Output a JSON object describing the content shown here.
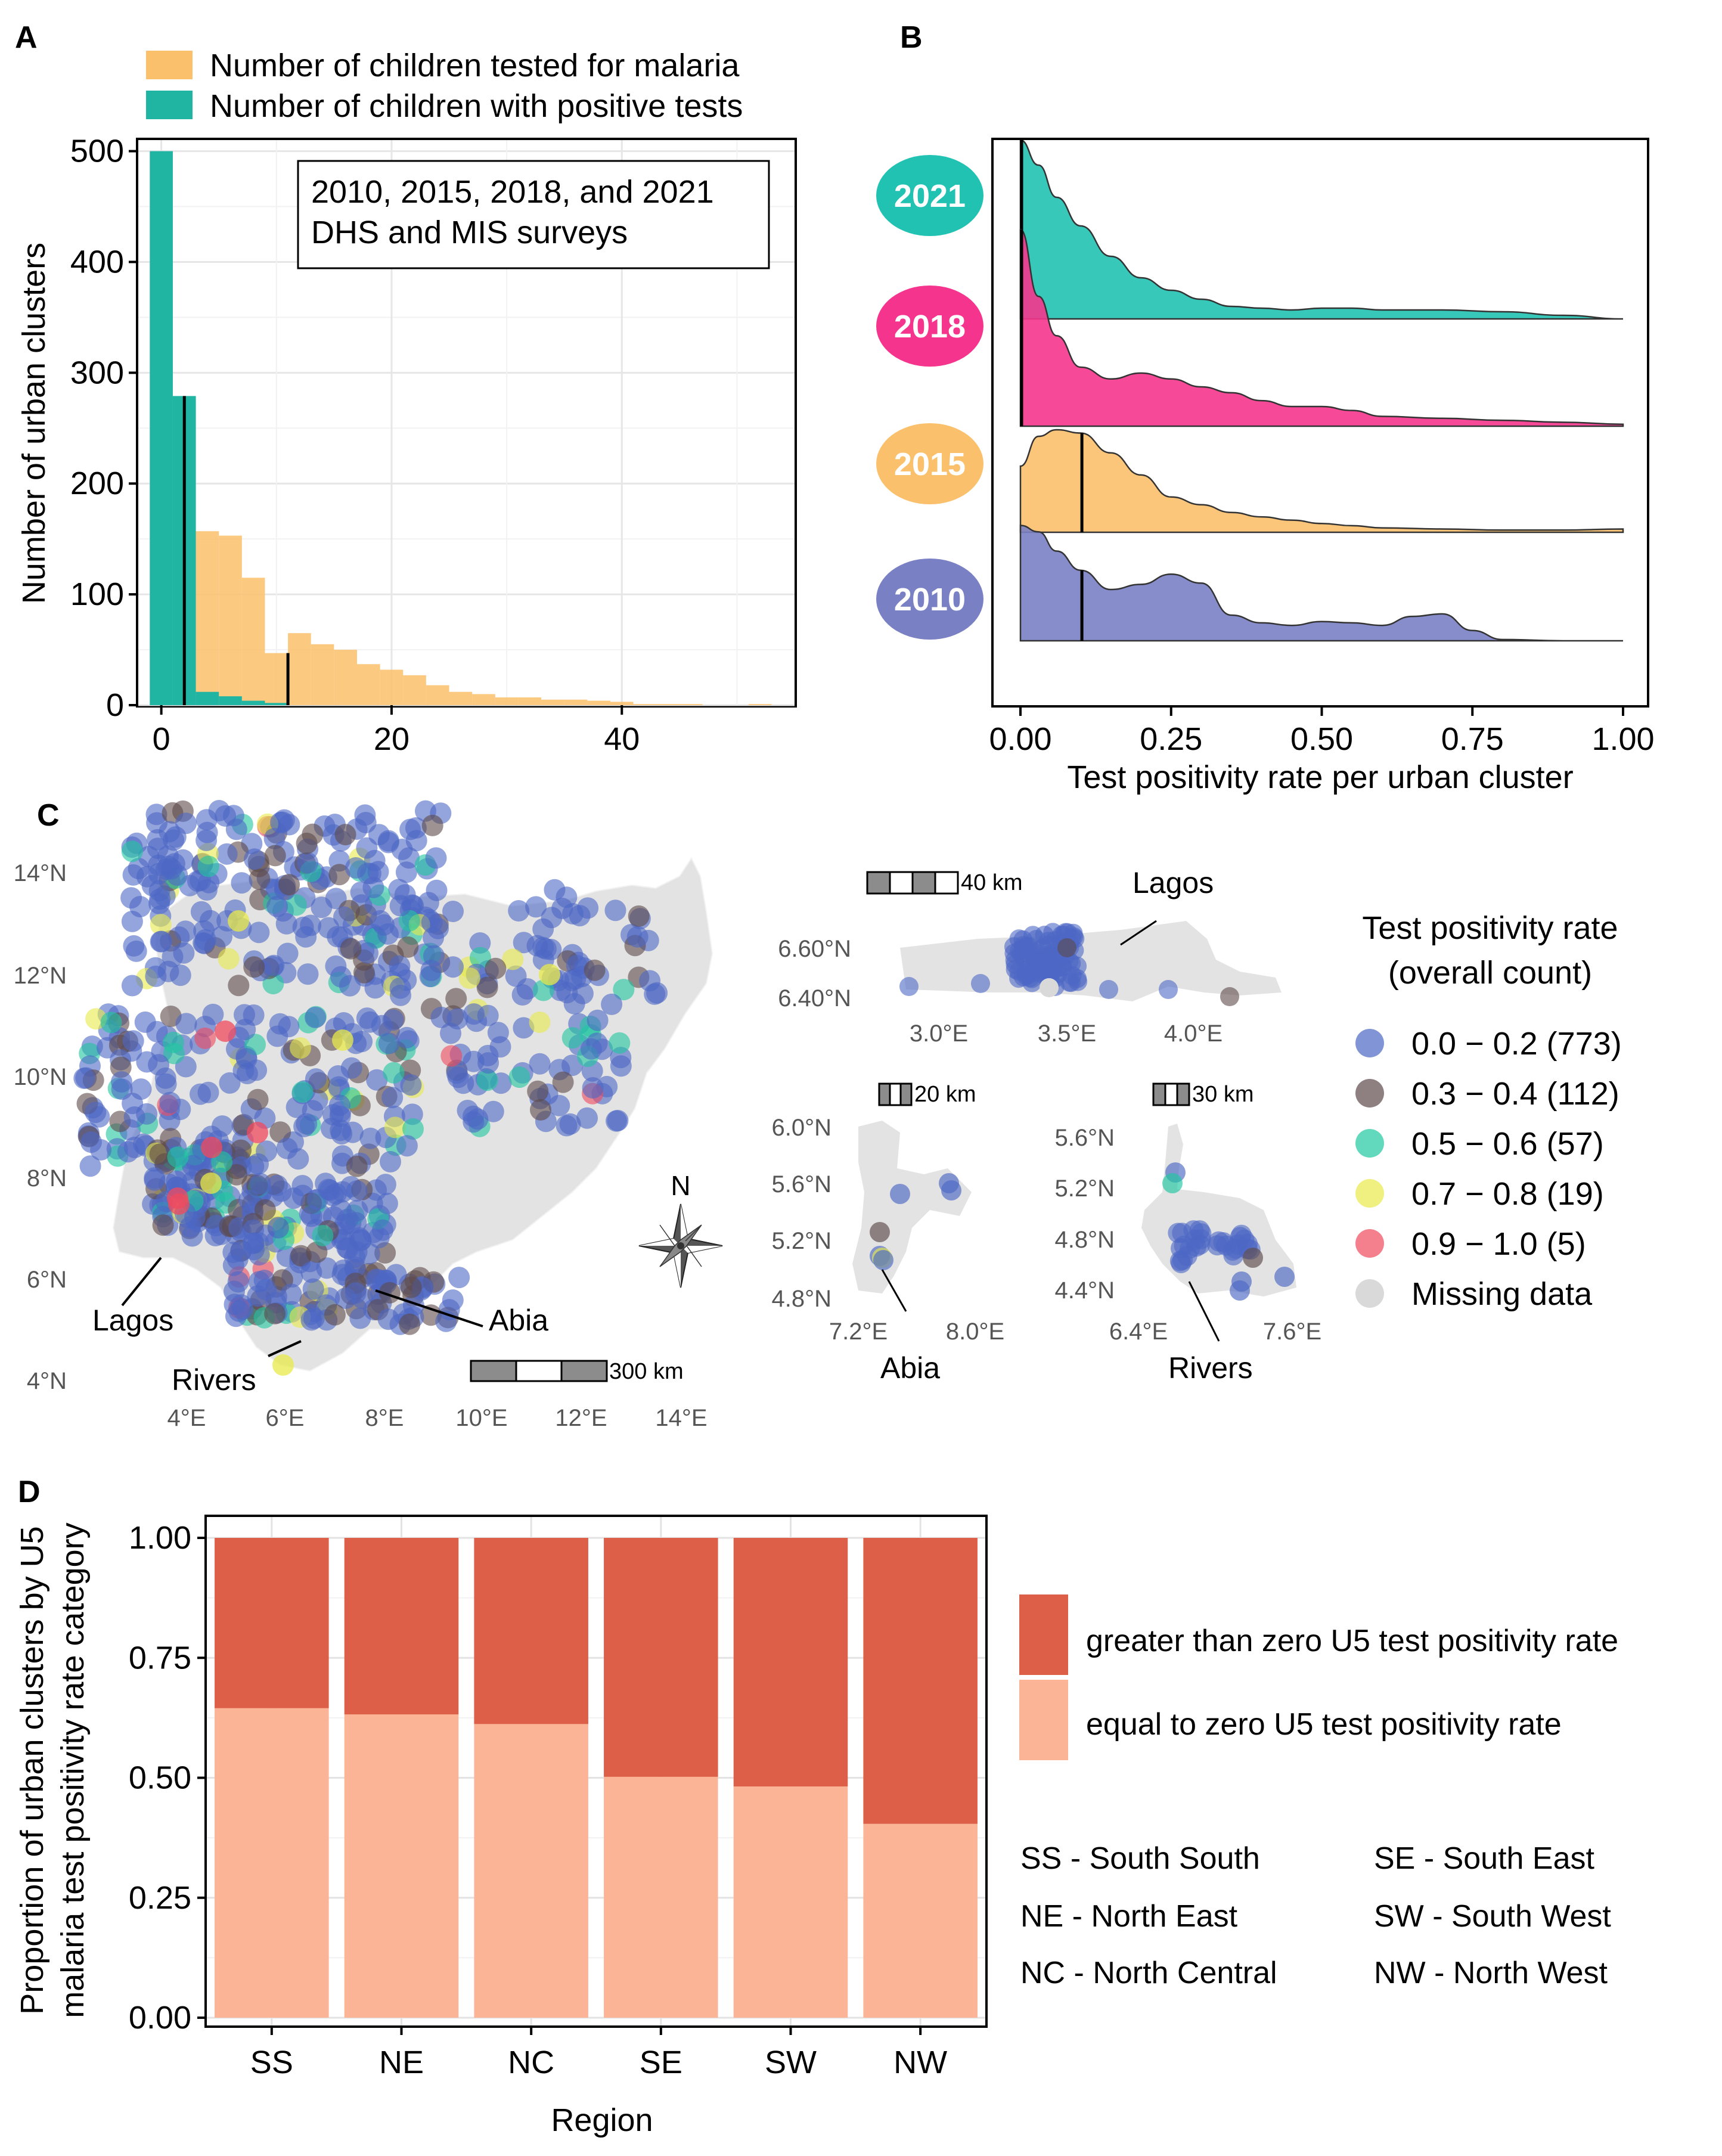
{
  "chart_data": [
    {
      "panel": "A",
      "type": "bar",
      "title": "A",
      "xlabel": "",
      "ylabel": "Number of urban clusters",
      "xlim": [
        -2,
        55
      ],
      "ylim": [
        0,
        510
      ],
      "xticks": [
        0,
        20,
        40
      ],
      "yticks": [
        0,
        100,
        200,
        300,
        400,
        500
      ],
      "annotation_lines": [
        "2010, 2015, 2018, and 2021",
        "DHS and MIS surveys"
      ],
      "legend": {
        "position": "top",
        "entries": [
          "Number of children tested for malaria",
          "Number of children with positive tests"
        ]
      },
      "colors": {
        "tested": "#fbc06b",
        "positive": "#1fb5a2"
      },
      "medians": {
        "positive": 2,
        "tested": 11
      },
      "series": [
        {
          "name": "Number of children tested for malaria",
          "bin_width": 2,
          "x": [
            0,
            2,
            4,
            6,
            8,
            10,
            12,
            14,
            16,
            18,
            20,
            22,
            24,
            26,
            28,
            30,
            32,
            34,
            36,
            38,
            40,
            42,
            44,
            46,
            48,
            50,
            52
          ],
          "values": [
            0,
            20,
            157,
            153,
            115,
            47,
            65,
            55,
            50,
            37,
            32,
            27,
            18,
            12,
            10,
            7,
            7,
            5,
            5,
            4,
            3,
            1,
            1,
            1,
            0,
            0,
            1
          ]
        },
        {
          "name": "Number of children with positive tests",
          "bin_width": 2,
          "x": [
            0,
            2,
            4,
            6,
            8,
            10
          ],
          "values": [
            500,
            279,
            12,
            8,
            4,
            2
          ]
        }
      ]
    },
    {
      "panel": "B",
      "type": "area",
      "title": "B",
      "xlabel": "Test positivity rate per urban cluster",
      "ylabel": "",
      "xlim": [
        0,
        1
      ],
      "xticks": [
        "0.00",
        "0.25",
        "0.50",
        "0.75",
        "1.00"
      ],
      "xtick_values": [
        0,
        0.25,
        0.5,
        0.75,
        1.0
      ],
      "series": [
        {
          "name": "2021",
          "color": "#21c2b2",
          "median": 0.0,
          "x": [
            0,
            0.03,
            0.06,
            0.1,
            0.15,
            0.2,
            0.25,
            0.3,
            0.35,
            0.4,
            0.45,
            0.5,
            0.55,
            0.6,
            0.7,
            0.8,
            0.9,
            1.0
          ],
          "values": [
            1.0,
            0.86,
            0.68,
            0.52,
            0.35,
            0.23,
            0.16,
            0.11,
            0.07,
            0.06,
            0.05,
            0.06,
            0.06,
            0.05,
            0.05,
            0.04,
            0.02,
            0.0
          ]
        },
        {
          "name": "2018",
          "color": "#f5358d",
          "median": 0.0,
          "x": [
            0,
            0.03,
            0.06,
            0.1,
            0.15,
            0.2,
            0.25,
            0.3,
            0.35,
            0.4,
            0.45,
            0.5,
            0.55,
            0.6,
            0.7,
            0.8,
            0.9,
            1.0
          ],
          "values": [
            1.0,
            0.66,
            0.46,
            0.3,
            0.24,
            0.27,
            0.24,
            0.2,
            0.17,
            0.13,
            0.1,
            0.1,
            0.08,
            0.05,
            0.04,
            0.03,
            0.02,
            0.01
          ]
        },
        {
          "name": "2015",
          "color": "#fbc06b",
          "median": 0.1,
          "x": [
            0,
            0.03,
            0.06,
            0.1,
            0.15,
            0.2,
            0.25,
            0.3,
            0.35,
            0.4,
            0.45,
            0.5,
            0.55,
            0.6,
            0.7,
            0.8,
            0.9,
            1.0
          ],
          "values": [
            0.6,
            0.87,
            0.93,
            0.9,
            0.72,
            0.52,
            0.32,
            0.25,
            0.18,
            0.14,
            0.11,
            0.08,
            0.06,
            0.04,
            0.03,
            0.02,
            0.02,
            0.03
          ]
        },
        {
          "name": "2010",
          "color": "#7a80c4",
          "median": 0.1,
          "x": [
            0,
            0.03,
            0.06,
            0.1,
            0.15,
            0.2,
            0.25,
            0.3,
            0.35,
            0.4,
            0.45,
            0.5,
            0.55,
            0.6,
            0.65,
            0.7,
            0.75,
            0.8,
            0.9,
            1.0
          ],
          "values": [
            0.9,
            0.85,
            0.7,
            0.55,
            0.4,
            0.44,
            0.52,
            0.45,
            0.2,
            0.14,
            0.12,
            0.15,
            0.14,
            0.12,
            0.19,
            0.21,
            0.08,
            0.01,
            0.0,
            0.0
          ]
        }
      ]
    },
    {
      "panel": "C",
      "type": "scatter",
      "title": "C",
      "legend_title_lines": [
        "Test positivity rate",
        "(overall count)"
      ],
      "categories": [
        {
          "label": "0.0 − 0.2 (773)",
          "color": "#4c68c4"
        },
        {
          "label": "0.3 − 0.4 (112)",
          "color": "#5e4a4a"
        },
        {
          "label": "0.5 − 0.6 (57)",
          "color": "#1fc7a0"
        },
        {
          "label": "0.7 − 0.8 (19)",
          "color": "#e8ea4a"
        },
        {
          "label": "0.9 − 1.0 (5)",
          "color": "#f04a5e"
        },
        {
          "label": "Missing data",
          "color": "#d9d9d9"
        }
      ],
      "main_map": {
        "xticks": [
          "4°E",
          "6°E",
          "8°E",
          "10°E",
          "12°E",
          "14°E"
        ],
        "yticks": [
          "14°N",
          "12°N",
          "10°N",
          "8°N",
          "6°N",
          "4°N"
        ],
        "scalebar": "300 km",
        "labels": [
          "Lagos",
          "Abia",
          "Rivers"
        ],
        "compass": "N"
      },
      "insets": [
        {
          "name": "Lagos",
          "xticks": [
            "3.0°E",
            "3.5°E",
            "4.0°E"
          ],
          "yticks": [
            "6.60°N",
            "6.40°N"
          ],
          "scalebar": "40 km"
        },
        {
          "name": "Abia",
          "xticks": [
            "7.2°E",
            "8.0°E"
          ],
          "yticks": [
            "6.0°N",
            "5.6°N",
            "5.2°N",
            "4.8°N"
          ],
          "scalebar": "20 km"
        },
        {
          "name": "Rivers",
          "xticks": [
            "6.4°E",
            "7.6°E"
          ],
          "yticks": [
            "5.6°N",
            "5.2°N",
            "4.8°N",
            "4.4°N"
          ],
          "scalebar": "30 km"
        }
      ]
    },
    {
      "panel": "D",
      "type": "bar",
      "title": "D",
      "stacked": true,
      "xlabel": "Region",
      "ylabel_lines": [
        "Proportion of urban clusters by U5",
        "malaria test positivity rate category"
      ],
      "ylim": [
        0,
        1
      ],
      "yticks": [
        "0.00",
        "0.25",
        "0.50",
        "0.75",
        "1.00"
      ],
      "categories": [
        "SS",
        "NE",
        "NC",
        "SE",
        "SW",
        "NW"
      ],
      "series": [
        {
          "name": "equal to zero U5 test positivity rate",
          "color": "#fcb497",
          "values": [
            0.645,
            0.632,
            0.612,
            0.502,
            0.482,
            0.404
          ]
        },
        {
          "name": "greater than zero U5 test positivity rate",
          "color": "#de5f47",
          "values": [
            0.355,
            0.368,
            0.388,
            0.498,
            0.518,
            0.596
          ]
        }
      ],
      "region_key": [
        "SS - South South",
        "SE - South East",
        "NE - North East",
        "SW - South West",
        "NC - North Central",
        "NW - North West"
      ]
    }
  ],
  "panel_labels": [
    "A",
    "B",
    "C",
    "D"
  ],
  "legend_greater": "greater than zero U5 test positivity rate",
  "legend_equal": "equal to zero U5 test positivity rate"
}
